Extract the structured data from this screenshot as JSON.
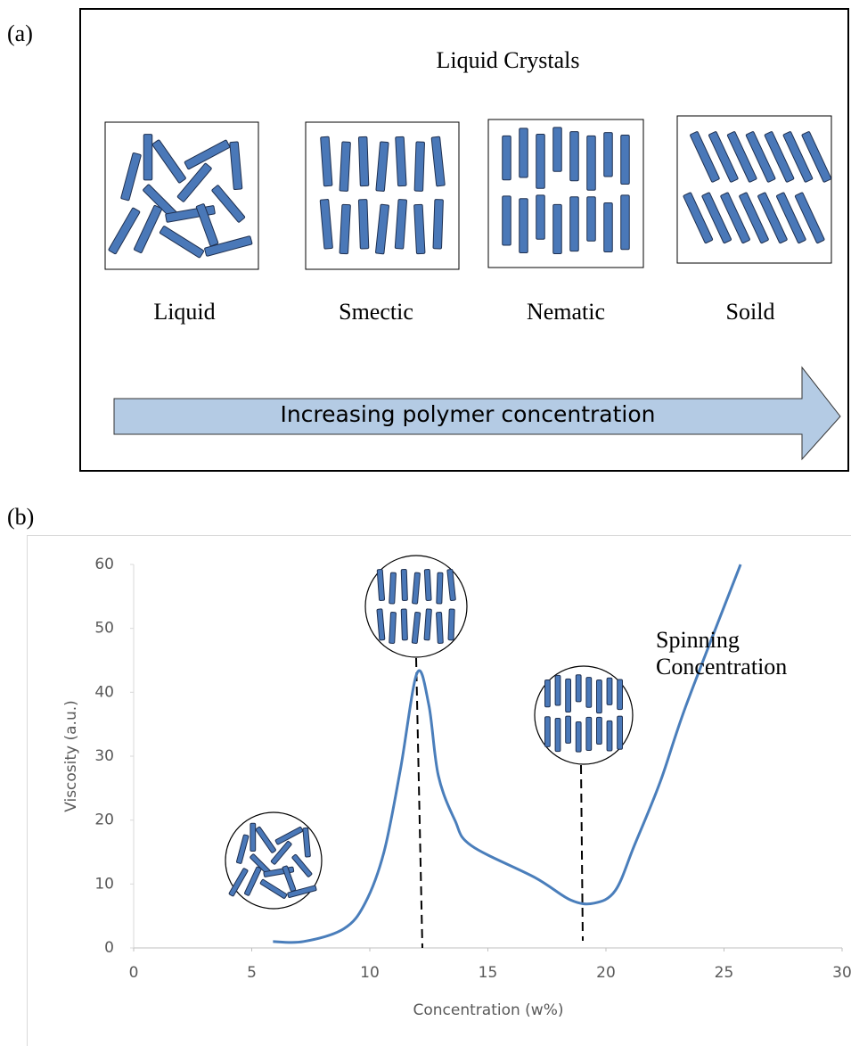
{
  "panel_a": {
    "label": "(a)",
    "title": "Liquid Crystals",
    "phases": [
      "Liquid",
      "Smectic",
      "Nematic",
      "Soild"
    ],
    "arrow_text": "Increasing polymer concentration"
  },
  "chart_data": {
    "type": "line",
    "panel_label": "(b)",
    "x_label": "Concentration (w%)",
    "y_label": "Viscosity (a.u.)",
    "x": [
      5.9,
      7.2,
      8.9,
      9.8,
      10.6,
      11.3,
      12.0,
      12.5,
      12.9,
      13.6,
      14.3,
      17.0,
      18.5,
      19.5,
      20.4,
      21.2,
      22.3,
      23.4,
      25.7
    ],
    "values": [
      1,
      1,
      3,
      7,
      15,
      28,
      43,
      38,
      27,
      20,
      16,
      11,
      7.5,
      7,
      9,
      16,
      26,
      38,
      60
    ],
    "color": "#4a7ebb",
    "xlim": [
      0,
      30
    ],
    "ylim": [
      0,
      60
    ],
    "xticks": [
      0,
      5,
      10,
      15,
      20,
      25,
      30
    ],
    "yticks": [
      0,
      10,
      20,
      30,
      40,
      50,
      60
    ],
    "annotation": "Spinning Concentration"
  }
}
